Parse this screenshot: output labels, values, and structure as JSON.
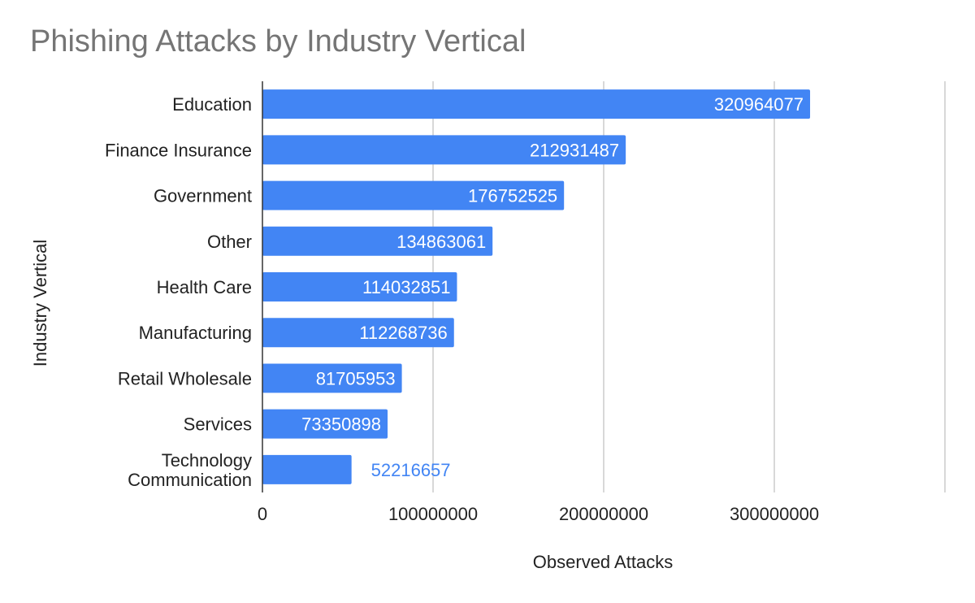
{
  "chart_data": {
    "type": "bar",
    "orientation": "horizontal",
    "title": "Phishing Attacks by Industry Vertical",
    "xlabel": "Observed Attacks",
    "ylabel": "Industry Vertical",
    "categories": [
      [
        "Education"
      ],
      [
        "Finance Insurance"
      ],
      [
        "Government"
      ],
      [
        "Other"
      ],
      [
        "Health Care"
      ],
      [
        "Manufacturing"
      ],
      [
        "Retail Wholesale"
      ],
      [
        "Services"
      ],
      [
        "Technology",
        "Communication"
      ]
    ],
    "values": [
      320964077,
      212931487,
      176752525,
      134863061,
      114032851,
      112268736,
      81705953,
      73350898,
      52216657
    ],
    "xlim": [
      0,
      400000000
    ],
    "xticks": [
      0,
      100000000,
      200000000,
      300000000
    ],
    "grid": true,
    "legend": "none",
    "bar_color": "#4285f4",
    "label_inside_color": "#ffffff",
    "label_outside_color": "#4285f4",
    "gridline_color": "#cccccc",
    "axis_color": "#333333"
  }
}
